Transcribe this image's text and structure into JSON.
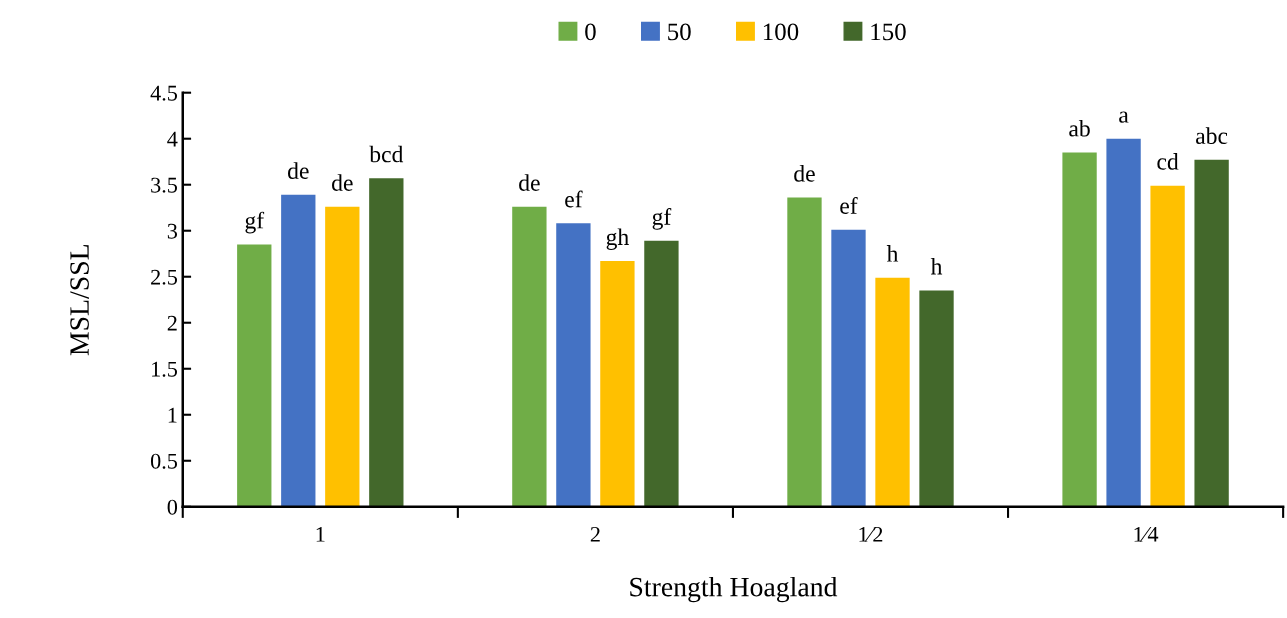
{
  "chart_data": {
    "type": "bar",
    "xlabel": "Strength Hoagland",
    "ylabel": "MSL/SSL",
    "categories": [
      "1",
      "2",
      "1⁄2",
      "1⁄4"
    ],
    "series": [
      {
        "name": "0",
        "color": "#70ad47",
        "values": [
          2.85,
          3.26,
          3.36,
          3.85
        ],
        "value_labels": [
          "gf",
          "de",
          "de",
          "ab"
        ]
      },
      {
        "name": "50",
        "color": "#4472c4",
        "values": [
          3.39,
          3.08,
          3.01,
          4.0
        ],
        "value_labels": [
          "de",
          "ef",
          "ef",
          "a"
        ]
      },
      {
        "name": "100",
        "color": "#ffc000",
        "values": [
          3.26,
          2.67,
          2.49,
          3.49
        ],
        "value_labels": [
          "de",
          "gh",
          "h",
          "cd"
        ]
      },
      {
        "name": "150",
        "color": "#43682b",
        "values": [
          3.57,
          2.89,
          2.35,
          3.77
        ],
        "value_labels": [
          "bcd",
          "gf",
          "h",
          "abc"
        ]
      }
    ],
    "ylim": [
      0,
      4.5
    ],
    "yticks": [
      0,
      0.5,
      1,
      1.5,
      2,
      2.5,
      3,
      3.5,
      4,
      4.5
    ],
    "grid": false,
    "legend": "top"
  }
}
